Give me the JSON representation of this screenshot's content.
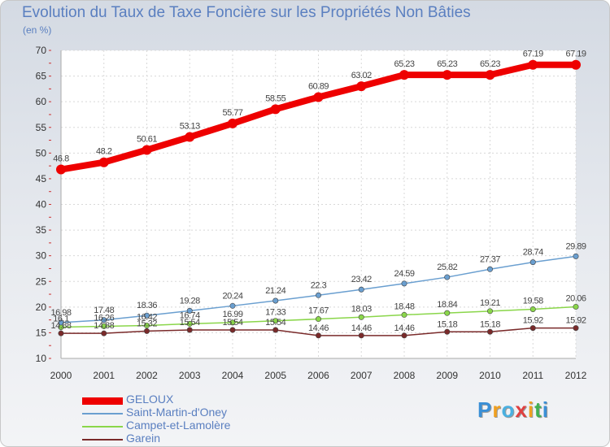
{
  "title": "Evolution du Taux de Taxe Foncière sur les Propriétés Non Bâties",
  "unit": "(en %)",
  "brand": {
    "letters": [
      "P",
      "r",
      "o",
      "x",
      "i",
      "t",
      "i"
    ],
    "colors": [
      "#3a8fd6",
      "#f0a020",
      "#4ab0e0",
      "#e04040",
      "#f0a020",
      "#40b050",
      "#3a8fd6"
    ]
  },
  "chart_data": {
    "type": "line",
    "x": [
      "2000",
      "2001",
      "2002",
      "2003",
      "2004",
      "2005",
      "2006",
      "2007",
      "2008",
      "2009",
      "2010",
      "2011",
      "2012"
    ],
    "ylim": [
      10,
      70
    ],
    "yticks": [
      10,
      15,
      20,
      25,
      30,
      35,
      40,
      45,
      50,
      55,
      60,
      65,
      70
    ],
    "grid": true,
    "legend_position": "bottom-left",
    "series": [
      {
        "name": "GELOUX",
        "color": "#ee0000",
        "labels": [
          "46.8",
          "48.2",
          "50.61",
          "53.13",
          "55.77",
          "58.55",
          "60.89",
          "63.02",
          "65.23",
          "65.23",
          "65.23",
          "67.19",
          "67.19"
        ],
        "values": [
          46.8,
          48.2,
          50.61,
          53.13,
          55.77,
          58.55,
          60.89,
          63.02,
          65.23,
          65.23,
          65.23,
          67.19,
          67.19
        ]
      },
      {
        "name": "Saint-Martin-d'Oney",
        "color": "#6a9fd0",
        "labels": [
          "16.98",
          "17.48",
          "18.36",
          "19.28",
          "20.24",
          "21.24",
          "22.3",
          "23.42",
          "24.59",
          "25.82",
          "27.37",
          "28.74",
          "29.89"
        ],
        "values": [
          16.98,
          17.48,
          18.36,
          19.28,
          20.24,
          21.24,
          22.3,
          23.42,
          24.59,
          25.82,
          27.37,
          28.74,
          29.89
        ]
      },
      {
        "name": "Campet-et-Lamolère",
        "color": "#8ad64a",
        "labels": [
          "16.1",
          "16.26",
          "16.42",
          "16.74",
          "16.99",
          "17.33",
          "17.67",
          "18.03",
          "18.48",
          "18.84",
          "19.21",
          "19.58",
          "20.06"
        ],
        "values": [
          16.1,
          16.26,
          16.42,
          16.74,
          16.99,
          17.33,
          17.67,
          18.03,
          18.48,
          18.84,
          19.21,
          19.58,
          20.06
        ]
      },
      {
        "name": "Garein",
        "color": "#7a2a2a",
        "labels": [
          "14.88",
          "14.88",
          "15.32",
          "15.54",
          "15.54",
          "15.54",
          "14.46",
          "14.46",
          "14.46",
          "15.18",
          "15.18",
          "15.92",
          "15.92"
        ],
        "values": [
          14.88,
          14.88,
          15.32,
          15.54,
          15.54,
          15.54,
          14.46,
          14.46,
          14.46,
          15.18,
          15.18,
          15.92,
          15.92
        ]
      }
    ]
  }
}
